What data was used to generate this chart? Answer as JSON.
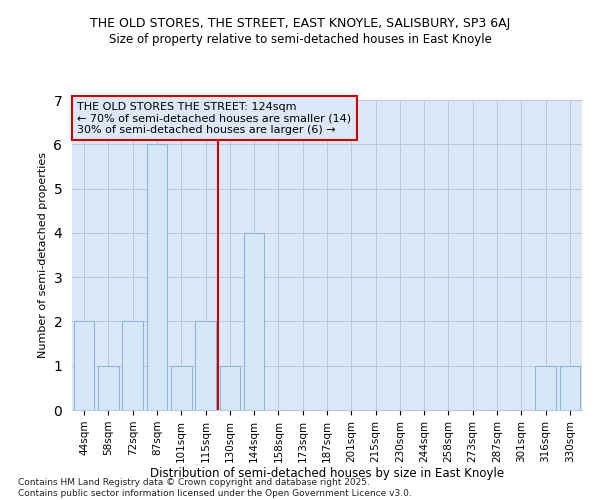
{
  "title1": "THE OLD STORES, THE STREET, EAST KNOYLE, SALISBURY, SP3 6AJ",
  "title2": "Size of property relative to semi-detached houses in East Knoyle",
  "xlabel": "Distribution of semi-detached houses by size in East Knoyle",
  "ylabel": "Number of semi-detached properties",
  "categories": [
    "44sqm",
    "58sqm",
    "72sqm",
    "87sqm",
    "101sqm",
    "115sqm",
    "130sqm",
    "144sqm",
    "158sqm",
    "173sqm",
    "187sqm",
    "201sqm",
    "215sqm",
    "230sqm",
    "244sqm",
    "258sqm",
    "273sqm",
    "287sqm",
    "301sqm",
    "316sqm",
    "330sqm"
  ],
  "values": [
    2,
    1,
    2,
    6,
    1,
    2,
    1,
    4,
    0,
    0,
    0,
    0,
    0,
    0,
    0,
    0,
    0,
    0,
    0,
    1,
    1
  ],
  "bar_color": "#d6e8f7",
  "bar_edge_color": "#8ab4d8",
  "subject_line_index": 6,
  "subject_line_color": "#cc0000",
  "annotation_title": "THE OLD STORES THE STREET: 124sqm",
  "annotation_line1": "← 70% of semi-detached houses are smaller (14)",
  "annotation_line2": "30% of semi-detached houses are larger (6) →",
  "ylim": [
    0,
    7
  ],
  "yticks": [
    0,
    1,
    2,
    3,
    4,
    5,
    6,
    7
  ],
  "footer1": "Contains HM Land Registry data © Crown copyright and database right 2025.",
  "footer2": "Contains public sector information licensed under the Open Government Licence v3.0.",
  "bg_color": "#dce8f8",
  "fig_bg_color": "#ffffff"
}
